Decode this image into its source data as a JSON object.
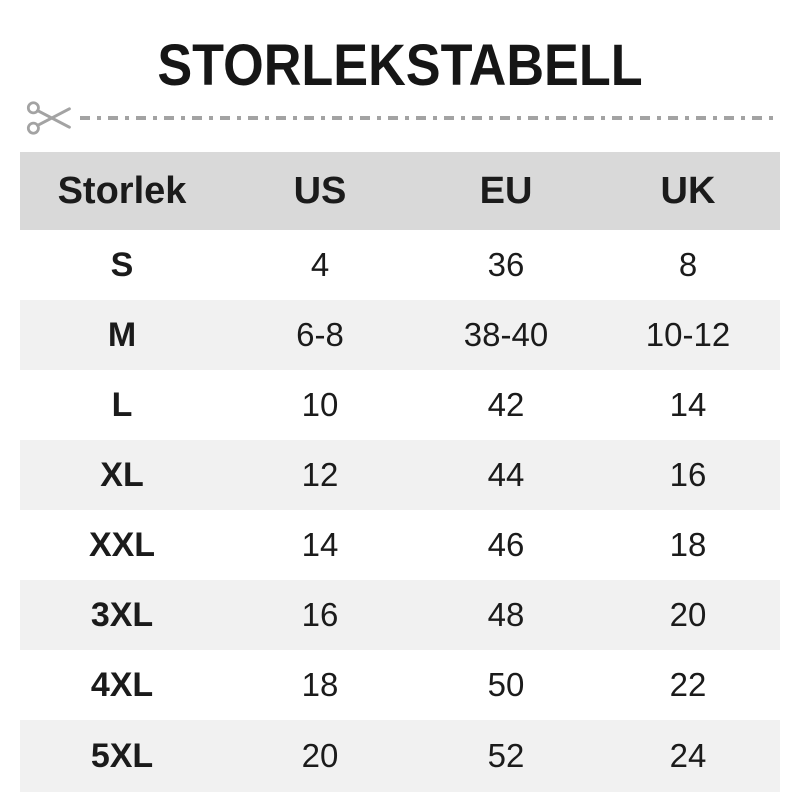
{
  "title": "STORLEKSTABELL",
  "chart_data": {
    "type": "table",
    "title": "STORLEKSTABELL",
    "columns": [
      "Storlek",
      "US",
      "EU",
      "UK"
    ],
    "rows": [
      [
        "S",
        "4",
        "36",
        "8"
      ],
      [
        "M",
        "6-8",
        "38-40",
        "10-12"
      ],
      [
        "L",
        "10",
        "42",
        "14"
      ],
      [
        "XL",
        "12",
        "44",
        "16"
      ],
      [
        "XXL",
        "14",
        "46",
        "18"
      ],
      [
        "3XL",
        "16",
        "48",
        "20"
      ],
      [
        "4XL",
        "18",
        "50",
        "22"
      ],
      [
        "5XL",
        "20",
        "52",
        "24"
      ]
    ],
    "layout": {
      "header_row_shaded": true,
      "alternating_rows": true,
      "alt_row_indices": [
        1,
        3,
        5,
        7
      ]
    }
  },
  "cut_line": {
    "icon": "scissors-icon",
    "style": "dash-dot"
  },
  "colors": {
    "header_bg": "#d9d9d9",
    "alt_row_bg": "#f1f1f1",
    "text": "#1b1b1b",
    "cut_line": "#a3a3a3"
  }
}
